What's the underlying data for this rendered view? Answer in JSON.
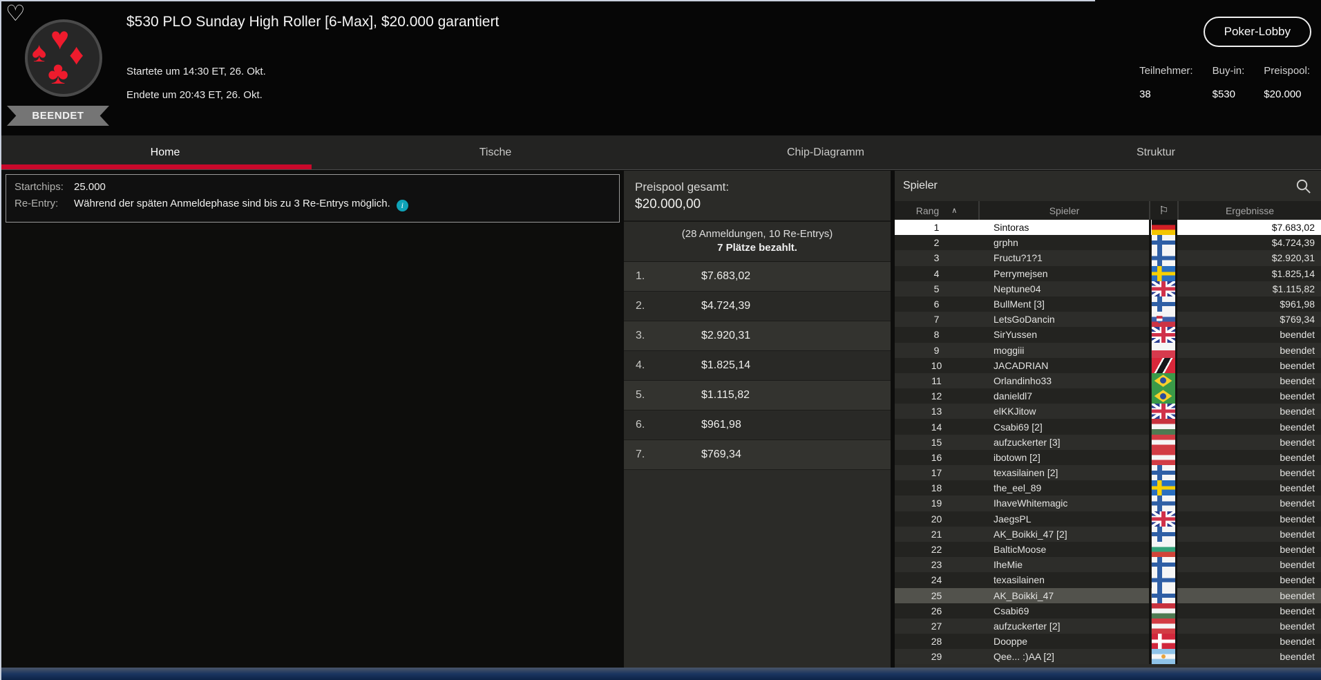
{
  "header": {
    "title": "$530 PLO Sunday High Roller [6-Max], $20.000 garantiert",
    "started": "Startete um 14:30 ET, 26. Okt.",
    "ended": "Endete um 20:43 ET, 26. Okt.",
    "status_badge": "BEENDET",
    "lobby_button": "Poker-Lobby",
    "favorite_icon": "♡",
    "stats": [
      {
        "label": "Teilnehmer:",
        "value": "38"
      },
      {
        "label": "Buy-in:",
        "value": "$530"
      },
      {
        "label": "Preispool:",
        "value": "$20.000"
      }
    ]
  },
  "tabs": [
    {
      "label": "Home",
      "active": true
    },
    {
      "label": "Tische",
      "active": false
    },
    {
      "label": "Chip-Diagramm",
      "active": false
    },
    {
      "label": "Struktur",
      "active": false
    }
  ],
  "info_box": {
    "startchips_label": "Startchips:",
    "startchips_value": "25.000",
    "reentry_label": "Re-Entry:",
    "reentry_value": "Während der späten Anmeldephase sind bis zu 3 Re-Entrys möglich.",
    "info_icon": "i"
  },
  "prizepool": {
    "total_label": "Preispool gesamt:",
    "total_value": "$20.000,00",
    "entries_note": "(28 Anmeldungen, 10 Re-Entrys)",
    "places_paid": "7 Plätze bezahlt.",
    "payouts": [
      {
        "rank": "1.",
        "amount": "$7.683,02"
      },
      {
        "rank": "2.",
        "amount": "$4.724,39"
      },
      {
        "rank": "3.",
        "amount": "$2.920,31"
      },
      {
        "rank": "4.",
        "amount": "$1.825,14"
      },
      {
        "rank": "5.",
        "amount": "$1.115,82"
      },
      {
        "rank": "6.",
        "amount": "$961,98"
      },
      {
        "rank": "7.",
        "amount": "$769,34"
      }
    ]
  },
  "players": {
    "panel_title": "Spieler",
    "rang_header": "Rang",
    "sort_indicator": "∧",
    "spieler_header": "Spieler",
    "flag_header_icon": "⚐",
    "ergebnisse_header": "Ergebnisse",
    "rows": [
      {
        "rank": "1",
        "name": "Sintoras",
        "flag": "de",
        "result": "$7.683,02",
        "highlight": "winner"
      },
      {
        "rank": "2",
        "name": "grphn",
        "flag": "fi",
        "result": "$4.724,39",
        "highlight": ""
      },
      {
        "rank": "3",
        "name": "Fructu?1?1",
        "flag": "fi",
        "result": "$2.920,31",
        "highlight": ""
      },
      {
        "rank": "4",
        "name": "Perrymejsen",
        "flag": "se",
        "result": "$1.825,14",
        "highlight": ""
      },
      {
        "rank": "5",
        "name": "Neptune04",
        "flag": "gb",
        "result": "$1.115,82",
        "highlight": ""
      },
      {
        "rank": "6",
        "name": "BullMent [3]",
        "flag": "fi",
        "result": "$961,98",
        "highlight": ""
      },
      {
        "rank": "7",
        "name": "LetsGoDancin",
        "flag": "sk",
        "result": "$769,34",
        "highlight": ""
      },
      {
        "rank": "8",
        "name": "SirYussen",
        "flag": "gb",
        "result": "beendet",
        "highlight": ""
      },
      {
        "rank": "9",
        "name": "moggiii",
        "flag": "pl",
        "result": "beendet",
        "highlight": ""
      },
      {
        "rank": "10",
        "name": "JACADRIAN",
        "flag": "tt",
        "result": "beendet",
        "highlight": ""
      },
      {
        "rank": "11",
        "name": "Orlandinho33",
        "flag": "br",
        "result": "beendet",
        "highlight": ""
      },
      {
        "rank": "12",
        "name": "danieldl7",
        "flag": "br",
        "result": "beendet",
        "highlight": ""
      },
      {
        "rank": "13",
        "name": "elKKJitow",
        "flag": "gb",
        "result": "beendet",
        "highlight": ""
      },
      {
        "rank": "14",
        "name": "Csabi69 [2]",
        "flag": "hu",
        "result": "beendet",
        "highlight": ""
      },
      {
        "rank": "15",
        "name": "aufzuckerter [3]",
        "flag": "at",
        "result": "beendet",
        "highlight": ""
      },
      {
        "rank": "16",
        "name": "ibotown [2]",
        "flag": "at",
        "result": "beendet",
        "highlight": ""
      },
      {
        "rank": "17",
        "name": "texasilainen [2]",
        "flag": "fi",
        "result": "beendet",
        "highlight": ""
      },
      {
        "rank": "18",
        "name": "the_eel_89",
        "flag": "se",
        "result": "beendet",
        "highlight": ""
      },
      {
        "rank": "19",
        "name": "IhaveWhitemagic",
        "flag": "fi",
        "result": "beendet",
        "highlight": ""
      },
      {
        "rank": "20",
        "name": "JaegsPL",
        "flag": "gb",
        "result": "beendet",
        "highlight": ""
      },
      {
        "rank": "21",
        "name": "AK_Boikki_47 [2]",
        "flag": "fi",
        "result": "beendet",
        "highlight": ""
      },
      {
        "rank": "22",
        "name": "BalticMoose",
        "flag": "bg",
        "result": "beendet",
        "highlight": ""
      },
      {
        "rank": "23",
        "name": "IheMie",
        "flag": "fi",
        "result": "beendet",
        "highlight": ""
      },
      {
        "rank": "24",
        "name": "texasilainen",
        "flag": "fi",
        "result": "beendet",
        "highlight": ""
      },
      {
        "rank": "25",
        "name": "AK_Boikki_47",
        "flag": "fi",
        "result": "beendet",
        "highlight": "selected"
      },
      {
        "rank": "26",
        "name": "Csabi69",
        "flag": "hu",
        "result": "beendet",
        "highlight": ""
      },
      {
        "rank": "27",
        "name": "aufzuckerter [2]",
        "flag": "at",
        "result": "beendet",
        "highlight": ""
      },
      {
        "rank": "28",
        "name": "Dooppe",
        "flag": "dk",
        "result": "beendet",
        "highlight": ""
      },
      {
        "rank": "29",
        "name": "Qee... :)AA [2]",
        "flag": "ar",
        "result": "beendet",
        "highlight": ""
      }
    ]
  },
  "colors": {
    "accent_red": "#c9082b",
    "info_icon_teal": "#0fa3b8",
    "panel_gray": "#2b2b28",
    "bottom_bar_blue": "#1b3560"
  }
}
